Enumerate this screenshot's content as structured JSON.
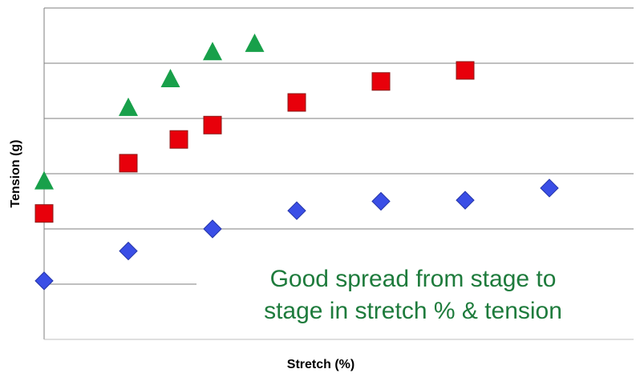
{
  "chart_data": {
    "type": "scatter",
    "xlabel": "Stretch (%)",
    "ylabel": "Tension (g)",
    "annotation": [
      "Good spread from stage to",
      "stage in stretch % & tension"
    ],
    "annotation_color": "#1e7b3c",
    "xlim": [
      0,
      7
    ],
    "ylim": [
      0,
      6
    ],
    "yticks": [
      1,
      2,
      3,
      4,
      5,
      6
    ],
    "grid": true,
    "series": [
      {
        "color": "#3a4ee6",
        "marker": "diamond",
        "x": [
          0,
          1,
          2,
          3,
          4,
          5,
          6
        ],
        "values": [
          1.06,
          1.6,
          2.0,
          2.33,
          2.5,
          2.52,
          2.74
        ]
      },
      {
        "color": "#e8000b",
        "marker": "square",
        "x": [
          0,
          1,
          1.6,
          2,
          3,
          4,
          5
        ],
        "values": [
          2.28,
          3.19,
          3.62,
          3.88,
          4.29,
          4.67,
          4.87
        ]
      },
      {
        "color": "#18a04a",
        "marker": "triangle",
        "x": [
          0,
          1,
          1.5,
          2,
          2.5
        ],
        "values": [
          2.86,
          4.19,
          4.71,
          5.2,
          5.35
        ]
      }
    ]
  }
}
